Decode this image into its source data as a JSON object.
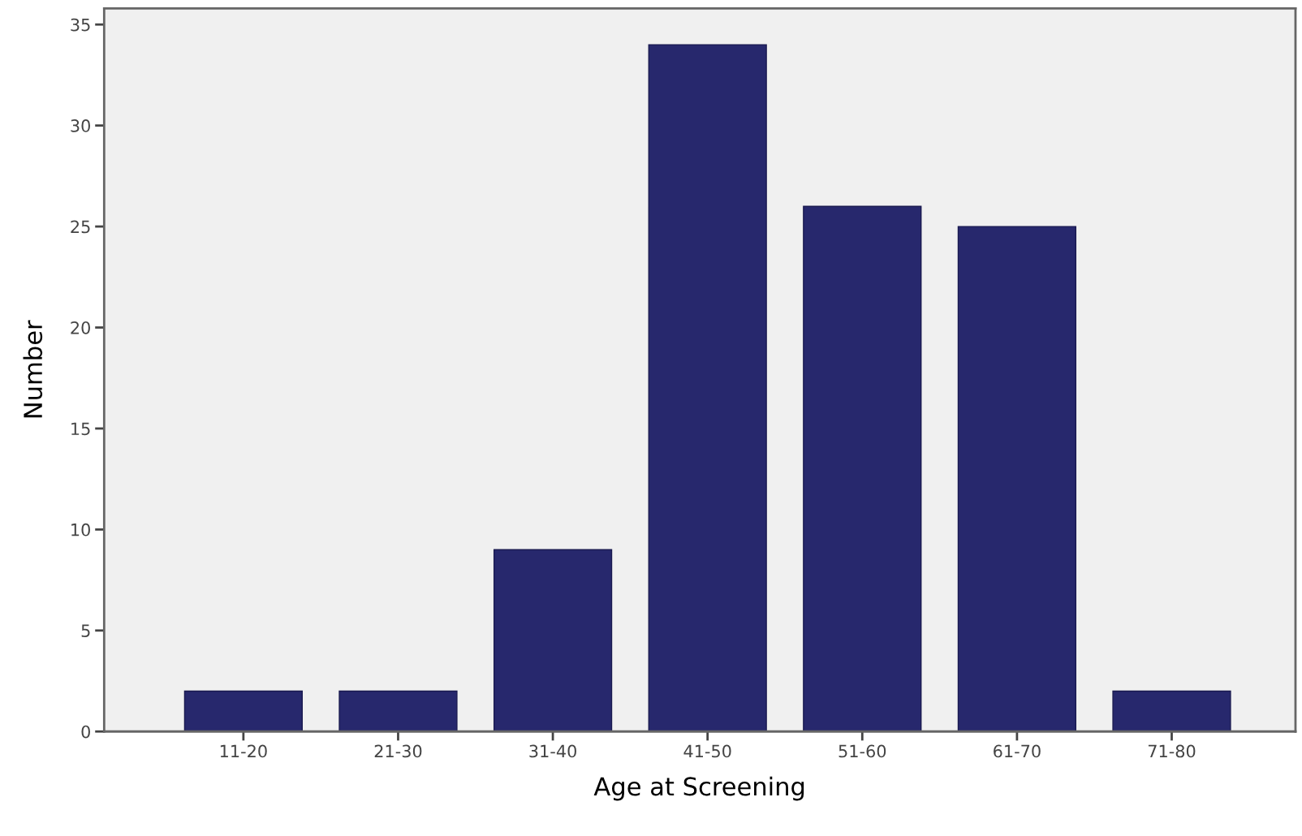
{
  "chart_data": {
    "type": "bar",
    "xlabel": "Age at Screening",
    "ylabel": "Number",
    "categories": [
      "11-20",
      "21-30",
      "31-40",
      "41-50",
      "51-60",
      "61-70",
      "71-80"
    ],
    "values": [
      2,
      2,
      9,
      34,
      26,
      25,
      2
    ],
    "color": "#27286d",
    "ylim": [
      0,
      35.8
    ],
    "yticks": [
      0,
      5,
      10,
      15,
      20,
      25,
      30,
      35
    ],
    "grid": false
  }
}
